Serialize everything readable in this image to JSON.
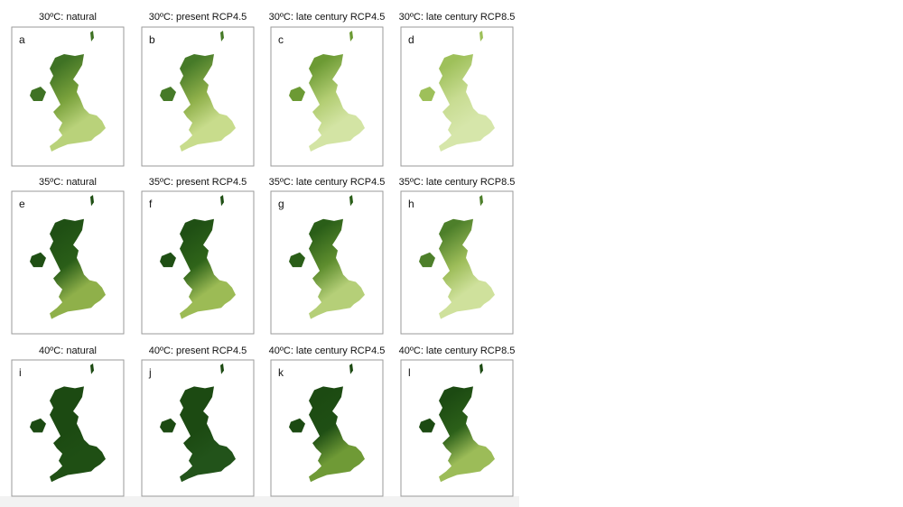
{
  "panels": [
    {
      "title": "30ºC: natural",
      "letter": "a"
    },
    {
      "title": "30ºC: present RCP4.5",
      "letter": "b"
    },
    {
      "title": "30ºC: late century RCP4.5",
      "letter": "c"
    },
    {
      "title": "30ºC: late century RCP8.5",
      "letter": "d"
    },
    {
      "title": "35ºC: natural",
      "letter": "e"
    },
    {
      "title": "35ºC: present RCP4.5",
      "letter": "f"
    },
    {
      "title": "35ºC: late century RCP4.5",
      "letter": "g"
    },
    {
      "title": "35ºC: late century RCP8.5",
      "letter": "h"
    },
    {
      "title": "40ºC: natural",
      "letter": "i"
    },
    {
      "title": "40ºC: present RCP4.5",
      "letter": "j"
    },
    {
      "title": "40ºC: late century RCP4.5",
      "letter": "k"
    },
    {
      "title": "40ºC: late century RCP8.5",
      "letter": "l"
    }
  ]
}
